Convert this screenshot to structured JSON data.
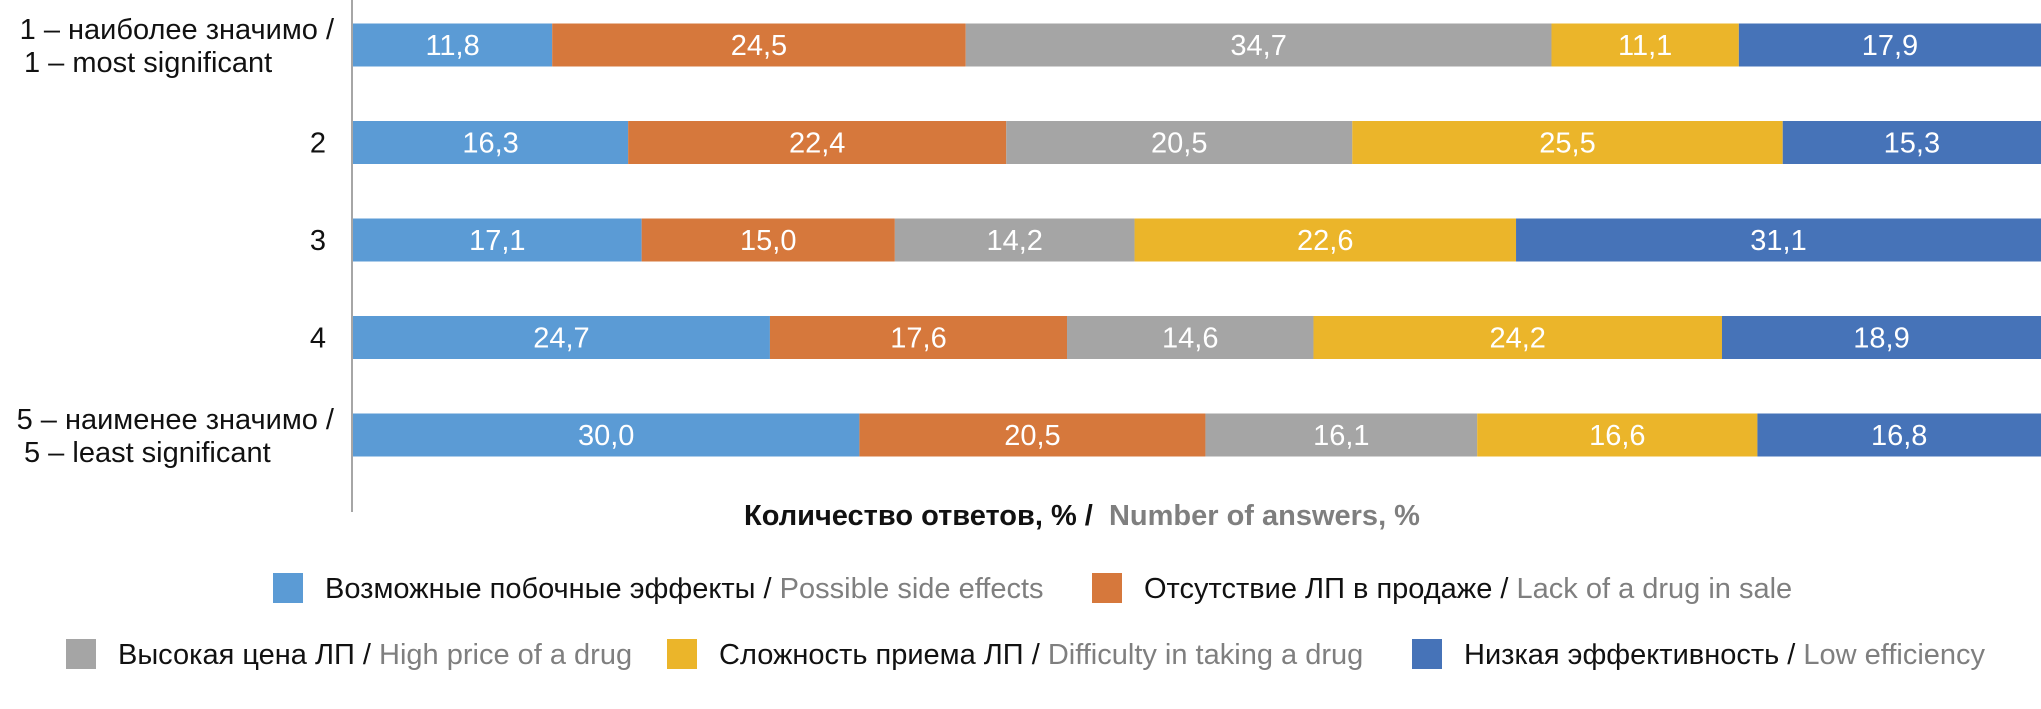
{
  "chart_data": {
    "type": "bar",
    "orientation": "horizontal",
    "stacked": true,
    "xlim": [
      0,
      100
    ],
    "grid": false,
    "legend_position": "bottom",
    "categories": [
      {
        "ru": "1 – наиболее значимо /",
        "en": "1 – most significant"
      },
      {
        "ru": "2",
        "en": ""
      },
      {
        "ru": "3",
        "en": ""
      },
      {
        "ru": "4",
        "en": ""
      },
      {
        "ru": "5 – наименее значимо /",
        "en": "5 – least significant"
      }
    ],
    "series": [
      {
        "name_ru": "Возможные побочные эффекты",
        "name_en": "Possible side effects",
        "color": "#5B9BD5",
        "values": [
          11.8,
          16.3,
          17.1,
          24.7,
          30.0
        ],
        "labels": [
          "11,8",
          "16,3",
          "17,1",
          "24,7",
          "30,0"
        ]
      },
      {
        "name_ru": "Отсутствие ЛП в продаже",
        "name_en": "Lack of a drug in sale",
        "color": "#D6783C",
        "values": [
          24.5,
          22.4,
          15.0,
          17.6,
          20.5
        ],
        "labels": [
          "24,5",
          "22,4",
          "15,0",
          "17,6",
          "20,5"
        ]
      },
      {
        "name_ru": "Высокая цена ЛП",
        "name_en": "High price of a drug",
        "color": "#A5A5A5",
        "values": [
          34.7,
          20.5,
          14.2,
          14.6,
          16.1
        ],
        "labels": [
          "34,7",
          "20,5",
          "14,2",
          "14,6",
          "16,1"
        ]
      },
      {
        "name_ru": "Сложность приема ЛП",
        "name_en": "Difficulty in taking a drug",
        "color": "#EBB52A",
        "values": [
          11.1,
          25.5,
          22.6,
          24.2,
          16.6
        ],
        "labels": [
          "11,1",
          "25,5",
          "22,6",
          "24,2",
          "16,6"
        ]
      },
      {
        "name_ru": "Низкая эффективность",
        "name_en": "Low efficiency",
        "color": "#4673B8",
        "values": [
          17.9,
          15.3,
          31.1,
          18.9,
          16.8
        ],
        "labels": [
          "17,9",
          "15,3",
          "31,1",
          "18,9",
          "16,8"
        ]
      }
    ],
    "xlabel": {
      "ru": "Количество ответов, % /",
      "en": "Number of answers, %"
    }
  }
}
